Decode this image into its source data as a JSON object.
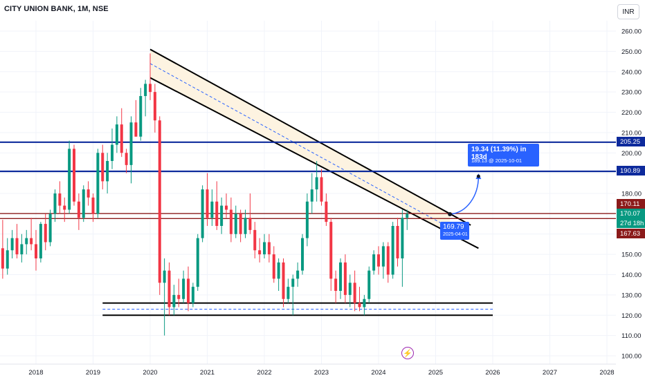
{
  "header": {
    "title": "CITY UNION BANK, 1M, NSE",
    "currency": "INR"
  },
  "colors": {
    "up": "#089981",
    "down": "#f23645",
    "blue_line": "#0d2a9c",
    "red_line": "#8b1a1a",
    "channel_fill": "#fdf3e1",
    "label_blue": "#2962ff",
    "flash": "#9c27b0"
  },
  "icons": {
    "events": "lightning-icon"
  },
  "price_axis": {
    "ticks": [
      "260.00",
      "250.00",
      "240.00",
      "230.00",
      "220.00",
      "210.00",
      "200.00",
      "190.00",
      "180.00",
      "170.00",
      "160.00",
      "150.00",
      "140.00",
      "130.00",
      "120.00",
      "110.00",
      "100.00"
    ]
  },
  "time_axis": {
    "ticks": [
      "2018",
      "2019",
      "2020",
      "2021",
      "2022",
      "2023",
      "2024",
      "2025",
      "2026",
      "2027",
      "2028"
    ]
  },
  "price_tags": {
    "h1": "205.25",
    "h2": "190.89",
    "r1": "170.11",
    "current": "170.07",
    "countdown": "27d 18h",
    "r2": "167.63"
  },
  "projection": {
    "line1": "19.34 (11.39%) in 183d",
    "line2": "189.13 @ 2025-10-01"
  },
  "point_label": {
    "line1": "169.79",
    "line2": "2025-04-01"
  },
  "chart_data": {
    "type": "candlestick",
    "title": "CITY UNION BANK, 1M, NSE",
    "ylim": [
      97,
      266
    ],
    "xlim": [
      "2017-06",
      "2028-04"
    ],
    "grid": true,
    "candles": [
      {
        "t": "2017-06",
        "o": 153,
        "h": 167,
        "l": 138,
        "c": 143
      },
      {
        "t": "2017-07",
        "o": 143,
        "h": 158,
        "l": 140,
        "c": 152
      },
      {
        "t": "2017-08",
        "o": 152,
        "h": 162,
        "l": 148,
        "c": 158
      },
      {
        "t": "2017-09",
        "o": 158,
        "h": 165,
        "l": 148,
        "c": 150
      },
      {
        "t": "2017-10",
        "o": 150,
        "h": 160,
        "l": 146,
        "c": 155
      },
      {
        "t": "2017-11",
        "o": 155,
        "h": 162,
        "l": 150,
        "c": 158
      },
      {
        "t": "2017-12",
        "o": 158,
        "h": 168,
        "l": 152,
        "c": 155
      },
      {
        "t": "2018-01",
        "o": 155,
        "h": 162,
        "l": 142,
        "c": 148
      },
      {
        "t": "2018-02",
        "o": 148,
        "h": 166,
        "l": 146,
        "c": 165
      },
      {
        "t": "2018-03",
        "o": 165,
        "h": 170,
        "l": 152,
        "c": 156
      },
      {
        "t": "2018-04",
        "o": 156,
        "h": 172,
        "l": 154,
        "c": 170
      },
      {
        "t": "2018-05",
        "o": 170,
        "h": 182,
        "l": 166,
        "c": 180
      },
      {
        "t": "2018-06",
        "o": 180,
        "h": 186,
        "l": 170,
        "c": 174
      },
      {
        "t": "2018-07",
        "o": 174,
        "h": 178,
        "l": 166,
        "c": 172
      },
      {
        "t": "2018-08",
        "o": 172,
        "h": 206,
        "l": 170,
        "c": 202
      },
      {
        "t": "2018-09",
        "o": 202,
        "h": 204,
        "l": 174,
        "c": 176
      },
      {
        "t": "2018-10",
        "o": 176,
        "h": 180,
        "l": 162,
        "c": 168
      },
      {
        "t": "2018-11",
        "o": 168,
        "h": 184,
        "l": 166,
        "c": 182
      },
      {
        "t": "2018-12",
        "o": 182,
        "h": 186,
        "l": 174,
        "c": 178
      },
      {
        "t": "2019-01",
        "o": 178,
        "h": 180,
        "l": 166,
        "c": 170
      },
      {
        "t": "2019-02",
        "o": 170,
        "h": 202,
        "l": 168,
        "c": 200
      },
      {
        "t": "2019-03",
        "o": 200,
        "h": 204,
        "l": 182,
        "c": 186
      },
      {
        "t": "2019-04",
        "o": 186,
        "h": 200,
        "l": 180,
        "c": 196
      },
      {
        "t": "2019-05",
        "o": 196,
        "h": 212,
        "l": 192,
        "c": 204
      },
      {
        "t": "2019-06",
        "o": 204,
        "h": 218,
        "l": 200,
        "c": 214
      },
      {
        "t": "2019-07",
        "o": 214,
        "h": 222,
        "l": 198,
        "c": 200
      },
      {
        "t": "2019-08",
        "o": 200,
        "h": 202,
        "l": 190,
        "c": 194
      },
      {
        "t": "2019-09",
        "o": 194,
        "h": 218,
        "l": 185,
        "c": 215
      },
      {
        "t": "2019-10",
        "o": 215,
        "h": 226,
        "l": 208,
        "c": 208
      },
      {
        "t": "2019-11",
        "o": 208,
        "h": 232,
        "l": 206,
        "c": 228
      },
      {
        "t": "2019-12",
        "o": 228,
        "h": 236,
        "l": 218,
        "c": 234
      },
      {
        "t": "2020-01",
        "o": 234,
        "h": 249,
        "l": 226,
        "c": 230
      },
      {
        "t": "2020-02",
        "o": 230,
        "h": 234,
        "l": 210,
        "c": 216
      },
      {
        "t": "2020-03",
        "o": 216,
        "h": 218,
        "l": 130,
        "c": 136
      },
      {
        "t": "2020-04",
        "o": 136,
        "h": 148,
        "l": 110,
        "c": 142
      },
      {
        "t": "2020-05",
        "o": 142,
        "h": 146,
        "l": 120,
        "c": 124
      },
      {
        "t": "2020-06",
        "o": 124,
        "h": 135,
        "l": 120,
        "c": 130
      },
      {
        "t": "2020-07",
        "o": 130,
        "h": 138,
        "l": 124,
        "c": 128
      },
      {
        "t": "2020-08",
        "o": 128,
        "h": 142,
        "l": 126,
        "c": 138
      },
      {
        "t": "2020-09",
        "o": 138,
        "h": 144,
        "l": 122,
        "c": 126
      },
      {
        "t": "2020-10",
        "o": 126,
        "h": 136,
        "l": 124,
        "c": 134
      },
      {
        "t": "2020-11",
        "o": 134,
        "h": 160,
        "l": 132,
        "c": 158
      },
      {
        "t": "2020-12",
        "o": 158,
        "h": 184,
        "l": 156,
        "c": 182
      },
      {
        "t": "2021-01",
        "o": 182,
        "h": 190,
        "l": 164,
        "c": 168
      },
      {
        "t": "2021-02",
        "o": 168,
        "h": 182,
        "l": 164,
        "c": 176
      },
      {
        "t": "2021-03",
        "o": 176,
        "h": 186,
        "l": 162,
        "c": 164
      },
      {
        "t": "2021-04",
        "o": 164,
        "h": 178,
        "l": 160,
        "c": 174
      },
      {
        "t": "2021-05",
        "o": 174,
        "h": 180,
        "l": 168,
        "c": 172
      },
      {
        "t": "2021-06",
        "o": 172,
        "h": 178,
        "l": 156,
        "c": 160
      },
      {
        "t": "2021-07",
        "o": 160,
        "h": 174,
        "l": 158,
        "c": 170
      },
      {
        "t": "2021-08",
        "o": 170,
        "h": 172,
        "l": 156,
        "c": 160
      },
      {
        "t": "2021-09",
        "o": 160,
        "h": 172,
        "l": 158,
        "c": 168
      },
      {
        "t": "2021-10",
        "o": 168,
        "h": 180,
        "l": 160,
        "c": 162
      },
      {
        "t": "2021-11",
        "o": 162,
        "h": 166,
        "l": 148,
        "c": 152
      },
      {
        "t": "2021-12",
        "o": 152,
        "h": 158,
        "l": 146,
        "c": 150
      },
      {
        "t": "2022-01",
        "o": 150,
        "h": 160,
        "l": 148,
        "c": 156
      },
      {
        "t": "2022-02",
        "o": 156,
        "h": 160,
        "l": 146,
        "c": 150
      },
      {
        "t": "2022-03",
        "o": 150,
        "h": 154,
        "l": 136,
        "c": 138
      },
      {
        "t": "2022-04",
        "o": 138,
        "h": 148,
        "l": 132,
        "c": 146
      },
      {
        "t": "2022-05",
        "o": 146,
        "h": 148,
        "l": 124,
        "c": 128
      },
      {
        "t": "2022-06",
        "o": 128,
        "h": 138,
        "l": 126,
        "c": 134
      },
      {
        "t": "2022-07",
        "o": 134,
        "h": 140,
        "l": 120,
        "c": 138
      },
      {
        "t": "2022-08",
        "o": 138,
        "h": 146,
        "l": 134,
        "c": 142
      },
      {
        "t": "2022-09",
        "o": 142,
        "h": 160,
        "l": 140,
        "c": 158
      },
      {
        "t": "2022-10",
        "o": 158,
        "h": 180,
        "l": 154,
        "c": 176
      },
      {
        "t": "2022-11",
        "o": 176,
        "h": 190,
        "l": 170,
        "c": 182
      },
      {
        "t": "2022-12",
        "o": 182,
        "h": 196,
        "l": 176,
        "c": 188
      },
      {
        "t": "2023-01",
        "o": 188,
        "h": 192,
        "l": 174,
        "c": 176
      },
      {
        "t": "2023-02",
        "o": 176,
        "h": 180,
        "l": 164,
        "c": 166
      },
      {
        "t": "2023-03",
        "o": 166,
        "h": 168,
        "l": 132,
        "c": 138
      },
      {
        "t": "2023-04",
        "o": 138,
        "h": 142,
        "l": 126,
        "c": 132
      },
      {
        "t": "2023-05",
        "o": 132,
        "h": 148,
        "l": 128,
        "c": 146
      },
      {
        "t": "2023-06",
        "o": 146,
        "h": 150,
        "l": 126,
        "c": 130
      },
      {
        "t": "2023-07",
        "o": 130,
        "h": 140,
        "l": 124,
        "c": 136
      },
      {
        "t": "2023-08",
        "o": 136,
        "h": 142,
        "l": 122,
        "c": 126
      },
      {
        "t": "2023-09",
        "o": 126,
        "h": 134,
        "l": 122,
        "c": 124
      },
      {
        "t": "2023-10",
        "o": 124,
        "h": 130,
        "l": 120,
        "c": 128
      },
      {
        "t": "2023-11",
        "o": 128,
        "h": 144,
        "l": 126,
        "c": 142
      },
      {
        "t": "2023-12",
        "o": 142,
        "h": 152,
        "l": 140,
        "c": 150
      },
      {
        "t": "2024-01",
        "o": 150,
        "h": 154,
        "l": 140,
        "c": 144
      },
      {
        "t": "2024-02",
        "o": 144,
        "h": 156,
        "l": 138,
        "c": 154
      },
      {
        "t": "2024-03",
        "o": 154,
        "h": 156,
        "l": 136,
        "c": 140
      },
      {
        "t": "2024-04",
        "o": 140,
        "h": 166,
        "l": 138,
        "c": 164
      },
      {
        "t": "2024-05",
        "o": 164,
        "h": 168,
        "l": 144,
        "c": 148
      },
      {
        "t": "2024-06",
        "o": 148,
        "h": 172,
        "l": 134,
        "c": 168
      },
      {
        "t": "2024-07",
        "o": 168,
        "h": 172,
        "l": 162,
        "c": 170
      }
    ],
    "horizontal_levels": [
      {
        "price": 205.25,
        "color": "blue"
      },
      {
        "price": 190.89,
        "color": "blue"
      },
      {
        "price": 170.11,
        "color": "dark-red"
      },
      {
        "price": 167.63,
        "color": "dark-red"
      }
    ],
    "descending_channel": {
      "upper": [
        [
          "2020-01",
          251
        ],
        [
          "2025-04",
          170
        ]
      ],
      "lower": [
        [
          "2020-01",
          237
        ],
        [
          "2025-10",
          153
        ]
      ],
      "mid_dashed": [
        [
          "2020-01",
          244
        ],
        [
          "2025-04",
          163
        ]
      ]
    },
    "support_zone": {
      "upper": [
        [
          "2019-03",
          126
        ],
        [
          "2026-01",
          126
        ]
      ],
      "lower": [
        [
          "2019-03",
          120
        ],
        [
          "2026-01",
          120
        ]
      ],
      "mid_dashed": [
        [
          "2019-03",
          123
        ],
        [
          "2026-01",
          123
        ]
      ]
    },
    "projection_arrow": {
      "from": [
        "2025-04",
        169.79
      ],
      "to": [
        "2025-10",
        189.13
      ]
    }
  }
}
